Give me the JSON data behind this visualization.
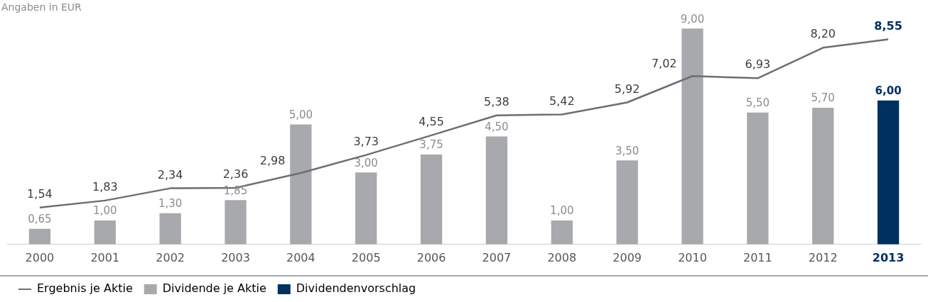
{
  "chart_data": {
    "type": "bar",
    "title": "Angaben in EUR",
    "categories": [
      "2000",
      "2001",
      "2002",
      "2003",
      "2004",
      "2005",
      "2006",
      "2007",
      "2008",
      "2009",
      "2010",
      "2011",
      "2012",
      "2013"
    ],
    "series": [
      {
        "name": "Ergebnis je Aktie",
        "type": "line",
        "color": "#6d6e71",
        "values": [
          1.54,
          1.83,
          2.34,
          2.36,
          2.98,
          3.73,
          4.55,
          5.38,
          5.42,
          5.92,
          7.02,
          6.93,
          8.2,
          8.55
        ],
        "value_labels": [
          "1,54",
          "1,83",
          "2,34",
          "2,36",
          "2,98",
          "3,73",
          "4,55",
          "5,38",
          "5,42",
          "5,92",
          "7,02",
          "6,93",
          "8,20",
          "8,55"
        ]
      },
      {
        "name": "Dividende je Aktie",
        "color": "#a7a9ac",
        "values": [
          0.65,
          1.0,
          1.3,
          1.85,
          5.0,
          3.0,
          3.75,
          4.5,
          1.0,
          3.5,
          9.0,
          5.5,
          5.7,
          null
        ],
        "value_labels": [
          "0,65",
          "1,00",
          "1,30",
          "1,85",
          "5,00",
          "3,00",
          "3,75",
          "4,50",
          "1,00",
          "3,50",
          "9,00",
          "5,50",
          "5,70",
          null
        ]
      },
      {
        "name": "Dividendenvorschlag",
        "color": "#003060",
        "values": [
          null,
          null,
          null,
          null,
          null,
          null,
          null,
          null,
          null,
          null,
          null,
          null,
          null,
          6.0
        ],
        "value_labels": [
          null,
          null,
          null,
          null,
          null,
          null,
          null,
          null,
          null,
          null,
          null,
          null,
          null,
          "6,00"
        ]
      }
    ],
    "stacked": true,
    "grid": false,
    "legend": "bottom left",
    "marker": "none",
    "line_style": "solid"
  }
}
